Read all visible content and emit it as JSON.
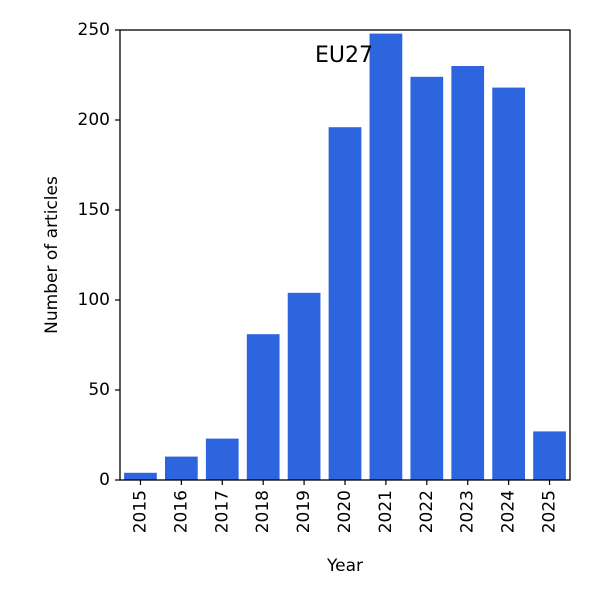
{
  "chart_data": {
    "type": "bar",
    "title": "EU27",
    "xlabel": "Year",
    "ylabel": "Number of articles",
    "categories": [
      "2015",
      "2016",
      "2017",
      "2018",
      "2019",
      "2020",
      "2021",
      "2022",
      "2023",
      "2024",
      "2025"
    ],
    "values": [
      4,
      13,
      23,
      81,
      104,
      196,
      248,
      224,
      230,
      218,
      27
    ],
    "ylim": [
      0,
      250
    ],
    "yticks": [
      0,
      50,
      100,
      150,
      200,
      250
    ],
    "grid": false,
    "bar_color": "#2c65dd",
    "xtick_rotation": "vertical"
  }
}
